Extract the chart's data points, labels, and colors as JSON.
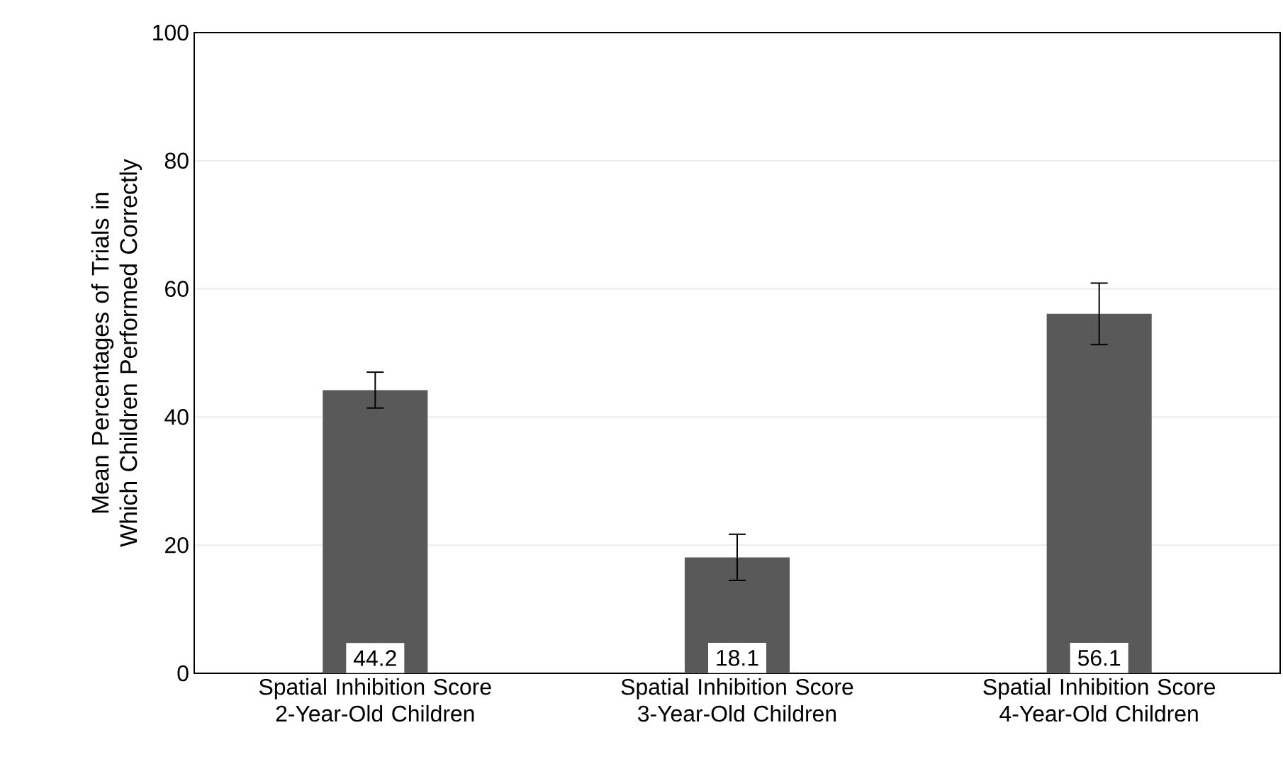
{
  "chart_data": {
    "type": "bar",
    "ylabel": "Mean Percentages of Trials in Which Children Performed Correctly",
    "categories": [
      "Spatial Inhibition Score 2-Year-Old Children",
      "Spatial Inhibition Score 3-Year-Old Children",
      "Spatial Inhibition Score 4-Year-Old Children"
    ],
    "values": [
      44.2,
      18.1,
      56.1
    ],
    "errors": [
      2.8,
      3.6,
      4.8
    ],
    "color": "#595959",
    "ylim": [
      0,
      100
    ],
    "yticks": [
      0,
      20,
      40,
      60,
      80,
      100
    ],
    "grid": "y",
    "data_labels": true
  }
}
